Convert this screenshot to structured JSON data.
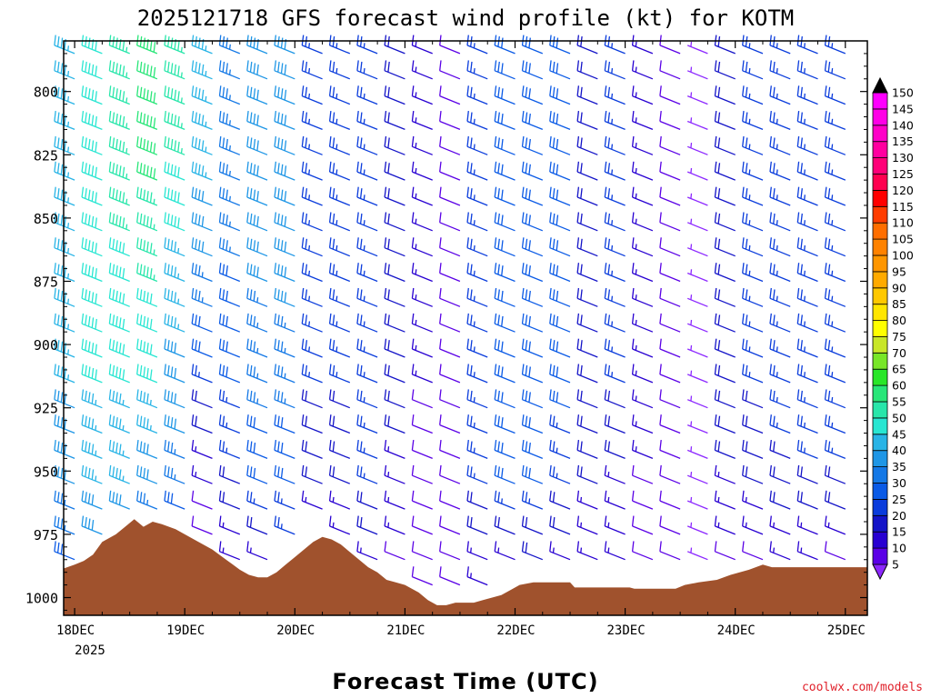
{
  "chart_data": {
    "type": "wind_barb_time_height",
    "title": "2025121718 GFS forecast wind profile (kt) for KOTM",
    "xlabel": "Forecast Time (UTC)",
    "ylabel": "",
    "credit": "coolwx.com/models",
    "y_axis": {
      "unit": "hPa",
      "inverted": true,
      "range": [
        780,
        1007
      ],
      "ticks": [
        800,
        825,
        850,
        875,
        900,
        925,
        950,
        975,
        1000
      ]
    },
    "x_axis": {
      "range_hours_from_18Dec_00Z": [
        -2.4,
        172.8
      ],
      "ticks": [
        "18DEC",
        "19DEC",
        "20DEC",
        "21DEC",
        "22DEC",
        "23DEC",
        "24DEC",
        "25DEC"
      ],
      "year_label": "2025"
    },
    "colorbar": {
      "unit": "kt",
      "ticks": [
        5,
        10,
        15,
        20,
        25,
        30,
        35,
        40,
        45,
        50,
        55,
        60,
        65,
        70,
        75,
        80,
        85,
        90,
        95,
        100,
        105,
        110,
        115,
        120,
        125,
        130,
        135,
        140,
        145,
        150
      ],
      "colors": [
        "#8c28ff",
        "#5a00e6",
        "#2800d2",
        "#1414c8",
        "#0a3cdc",
        "#0a5ae6",
        "#1478e6",
        "#1e96e6",
        "#28b4e6",
        "#28e6d2",
        "#28e6aa",
        "#28e678",
        "#28e628",
        "#78e628",
        "#c8e628",
        "#ffff00",
        "#ffe600",
        "#ffc800",
        "#ffaa00",
        "#ff9600",
        "#ff8200",
        "#ff6e00",
        "#ff3c00",
        "#ff0000",
        "#ff0050",
        "#ff0078",
        "#ff00a0",
        "#ff00c8",
        "#ff00e6",
        "#ff00ff"
      ]
    },
    "levels_hpa": [
      785,
      795,
      805,
      815,
      825,
      835,
      845,
      855,
      865,
      875,
      885,
      895,
      905,
      915,
      925,
      935,
      945,
      955,
      965,
      975,
      985,
      995
    ],
    "time_columns_hours": [
      0,
      6,
      12,
      18,
      24,
      30,
      36,
      42,
      48,
      54,
      60,
      66,
      72,
      78,
      84,
      90,
      96,
      102,
      108,
      114,
      120,
      126,
      132,
      138,
      144,
      150,
      156,
      162,
      168
    ],
    "wind_speed_kt_by_column": [
      [
        45,
        45,
        45,
        45,
        45,
        45,
        45,
        45,
        45,
        45,
        45,
        45,
        45,
        45,
        40,
        40,
        40,
        40,
        35,
        35,
        30,
        25
      ],
      [
        50,
        50,
        50,
        50,
        50,
        50,
        50,
        50,
        50,
        50,
        50,
        50,
        50,
        50,
        45,
        45,
        45,
        45,
        40,
        40,
        30,
        25
      ],
      [
        55,
        55,
        55,
        55,
        55,
        55,
        55,
        55,
        50,
        50,
        50,
        50,
        50,
        50,
        45,
        45,
        45,
        45,
        40,
        40,
        30,
        25
      ],
      [
        60,
        60,
        60,
        60,
        60,
        60,
        55,
        55,
        55,
        55,
        50,
        50,
        50,
        50,
        45,
        45,
        40,
        40,
        35,
        30,
        25,
        20
      ],
      [
        55,
        55,
        55,
        55,
        55,
        50,
        50,
        50,
        45,
        45,
        45,
        45,
        40,
        40,
        40,
        40,
        35,
        35,
        30,
        25,
        20,
        15
      ],
      [
        45,
        45,
        45,
        45,
        45,
        45,
        40,
        40,
        40,
        35,
        35,
        30,
        30,
        25,
        20,
        20,
        15,
        15,
        10,
        10,
        10,
        10
      ],
      [
        35,
        35,
        35,
        35,
        35,
        35,
        35,
        35,
        35,
        30,
        30,
        30,
        30,
        30,
        25,
        25,
        25,
        20,
        20,
        15,
        15,
        10
      ],
      [
        40,
        40,
        40,
        40,
        40,
        40,
        40,
        40,
        40,
        40,
        35,
        35,
        35,
        35,
        35,
        30,
        30,
        30,
        25,
        20,
        15,
        10
      ],
      [
        40,
        40,
        40,
        40,
        40,
        40,
        40,
        40,
        40,
        40,
        40,
        35,
        35,
        35,
        35,
        30,
        30,
        30,
        25,
        25,
        20,
        15
      ],
      [
        25,
        25,
        25,
        25,
        25,
        25,
        25,
        25,
        25,
        25,
        25,
        25,
        25,
        25,
        20,
        20,
        20,
        20,
        15,
        15,
        15,
        15
      ],
      [
        25,
        25,
        25,
        25,
        25,
        25,
        25,
        25,
        25,
        25,
        25,
        25,
        25,
        25,
        20,
        20,
        20,
        20,
        15,
        15,
        10,
        10
      ],
      [
        25,
        25,
        25,
        25,
        25,
        25,
        25,
        25,
        25,
        25,
        25,
        25,
        25,
        25,
        25,
        25,
        25,
        25,
        20,
        20,
        15,
        10
      ],
      [
        20,
        20,
        20,
        20,
        20,
        20,
        20,
        20,
        20,
        20,
        20,
        20,
        20,
        20,
        20,
        20,
        15,
        15,
        15,
        15,
        10,
        10
      ],
      [
        15,
        15,
        15,
        15,
        15,
        15,
        15,
        15,
        15,
        15,
        15,
        15,
        15,
        15,
        10,
        10,
        10,
        10,
        10,
        10,
        10,
        10
      ],
      [
        10,
        10,
        10,
        10,
        10,
        10,
        10,
        10,
        10,
        10,
        10,
        10,
        10,
        10,
        10,
        10,
        10,
        10,
        10,
        10,
        10,
        10
      ],
      [
        25,
        25,
        25,
        25,
        25,
        25,
        25,
        25,
        25,
        25,
        25,
        25,
        25,
        25,
        25,
        25,
        25,
        25,
        20,
        20,
        15,
        15
      ],
      [
        30,
        30,
        30,
        30,
        30,
        30,
        30,
        30,
        30,
        30,
        30,
        30,
        30,
        30,
        30,
        30,
        30,
        30,
        25,
        20,
        15,
        15
      ],
      [
        30,
        30,
        30,
        30,
        30,
        30,
        30,
        30,
        30,
        30,
        30,
        30,
        30,
        30,
        30,
        30,
        30,
        30,
        25,
        20,
        20,
        15
      ],
      [
        30,
        30,
        30,
        30,
        30,
        30,
        30,
        30,
        30,
        30,
        30,
        30,
        30,
        30,
        30,
        25,
        25,
        25,
        20,
        20,
        15,
        15
      ],
      [
        20,
        20,
        20,
        20,
        20,
        20,
        20,
        20,
        20,
        20,
        20,
        20,
        20,
        20,
        20,
        20,
        20,
        20,
        15,
        15,
        15,
        15
      ],
      [
        25,
        25,
        25,
        25,
        25,
        25,
        25,
        25,
        25,
        25,
        25,
        25,
        25,
        25,
        20,
        20,
        20,
        15,
        15,
        15,
        15,
        15
      ],
      [
        15,
        15,
        15,
        15,
        15,
        15,
        15,
        15,
        15,
        15,
        15,
        15,
        15,
        15,
        15,
        15,
        15,
        10,
        10,
        10,
        10,
        10
      ],
      [
        10,
        10,
        10,
        10,
        10,
        10,
        10,
        10,
        10,
        10,
        10,
        10,
        10,
        10,
        10,
        10,
        10,
        10,
        10,
        10,
        10,
        10
      ],
      [
        5,
        5,
        5,
        5,
        5,
        5,
        5,
        5,
        5,
        5,
        5,
        5,
        5,
        5,
        5,
        5,
        5,
        5,
        5,
        5,
        5,
        5
      ],
      [
        20,
        20,
        20,
        20,
        20,
        20,
        20,
        20,
        20,
        20,
        20,
        20,
        20,
        20,
        20,
        20,
        20,
        15,
        15,
        15,
        10,
        10
      ],
      [
        25,
        25,
        25,
        25,
        25,
        25,
        25,
        25,
        25,
        25,
        25,
        25,
        25,
        25,
        20,
        20,
        20,
        20,
        15,
        15,
        10,
        10
      ],
      [
        25,
        25,
        25,
        25,
        25,
        25,
        25,
        25,
        25,
        25,
        25,
        25,
        25,
        25,
        25,
        25,
        20,
        20,
        20,
        15,
        15,
        10
      ],
      [
        25,
        25,
        25,
        25,
        25,
        25,
        25,
        25,
        25,
        25,
        25,
        25,
        25,
        25,
        25,
        25,
        25,
        20,
        20,
        15,
        15,
        10
      ],
      [
        25,
        25,
        25,
        25,
        25,
        25,
        25,
        25,
        25,
        25,
        25,
        25,
        25,
        25,
        25,
        25,
        25,
        20,
        20,
        15,
        10,
        10
      ]
    ],
    "surface_pressure_hpa": [
      {
        "h": -2.4,
        "p": 988.5
      },
      {
        "h": 0,
        "p": 987
      },
      {
        "h": 2,
        "p": 985.5
      },
      {
        "h": 4,
        "p": 983
      },
      {
        "h": 6,
        "p": 978
      },
      {
        "h": 9,
        "p": 975
      },
      {
        "h": 11,
        "p": 972
      },
      {
        "h": 13,
        "p": 969
      },
      {
        "h": 15,
        "p": 972
      },
      {
        "h": 17,
        "p": 970
      },
      {
        "h": 19,
        "p": 971
      },
      {
        "h": 22,
        "p": 973
      },
      {
        "h": 24,
        "p": 975
      },
      {
        "h": 27,
        "p": 978
      },
      {
        "h": 30,
        "p": 981
      },
      {
        "h": 33,
        "p": 985
      },
      {
        "h": 36,
        "p": 989
      },
      {
        "h": 38,
        "p": 991
      },
      {
        "h": 40,
        "p": 992
      },
      {
        "h": 42,
        "p": 992
      },
      {
        "h": 44,
        "p": 990
      },
      {
        "h": 46,
        "p": 987
      },
      {
        "h": 48,
        "p": 984
      },
      {
        "h": 50,
        "p": 981
      },
      {
        "h": 52,
        "p": 978
      },
      {
        "h": 54,
        "p": 976
      },
      {
        "h": 56,
        "p": 977
      },
      {
        "h": 58,
        "p": 979
      },
      {
        "h": 60,
        "p": 982
      },
      {
        "h": 62,
        "p": 985
      },
      {
        "h": 64,
        "p": 988
      },
      {
        "h": 66,
        "p": 990
      },
      {
        "h": 68,
        "p": 993
      },
      {
        "h": 70,
        "p": 994
      },
      {
        "h": 72,
        "p": 995
      },
      {
        "h": 75,
        "p": 998
      },
      {
        "h": 77,
        "p": 1001
      },
      {
        "h": 79,
        "p": 1003
      },
      {
        "h": 81,
        "p": 1003
      },
      {
        "h": 83,
        "p": 1002
      },
      {
        "h": 87,
        "p": 1002
      },
      {
        "h": 89,
        "p": 1001
      },
      {
        "h": 91,
        "p": 1000
      },
      {
        "h": 93,
        "p": 999
      },
      {
        "h": 95,
        "p": 997
      },
      {
        "h": 97,
        "p": 995
      },
      {
        "h": 100,
        "p": 994
      },
      {
        "h": 108,
        "p": 994
      },
      {
        "h": 109,
        "p": 996
      },
      {
        "h": 121,
        "p": 996
      },
      {
        "h": 122,
        "p": 996.5
      },
      {
        "h": 131,
        "p": 996.5
      },
      {
        "h": 133,
        "p": 995
      },
      {
        "h": 136,
        "p": 994
      },
      {
        "h": 140,
        "p": 993
      },
      {
        "h": 143,
        "p": 991
      },
      {
        "h": 147,
        "p": 989
      },
      {
        "h": 150,
        "p": 987
      },
      {
        "h": 152,
        "p": 988
      },
      {
        "h": 158,
        "p": 988
      },
      {
        "h": 160,
        "p": 988
      },
      {
        "h": 172.8,
        "p": 988
      }
    ]
  }
}
